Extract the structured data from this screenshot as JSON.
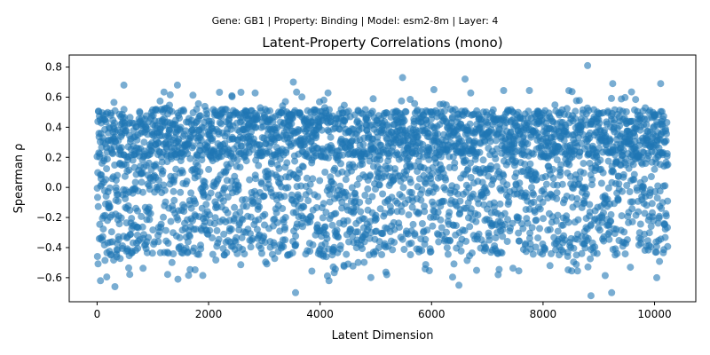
{
  "suptitle": "Gene: GB1 | Property: Binding | Model: esm2-8m | Layer: 4",
  "chart_data": {
    "type": "scatter",
    "title": "Latent-Property Correlations (mono)",
    "xlabel": "Latent Dimension",
    "ylabel": "Spearman ρ",
    "xlim": [
      -500,
      10740
    ],
    "ylim": [
      -0.76,
      0.88
    ],
    "xticks": [
      0,
      2000,
      4000,
      6000,
      8000,
      10000
    ],
    "yticks": [
      -0.6,
      -0.4,
      -0.2,
      0.0,
      0.2,
      0.4,
      0.6,
      0.8
    ],
    "xtick_labels": [
      "0",
      "2000",
      "4000",
      "6000",
      "8000",
      "10000"
    ],
    "ytick_labels": [
      "−0.6",
      "−0.4",
      "−0.2",
      "0.0",
      "0.2",
      "0.4",
      "0.6",
      "0.8"
    ],
    "grid": false,
    "legend": "none",
    "marker_color": "#1f77b4",
    "marker_alpha": 0.6,
    "n_points": 10240,
    "x_range": [
      0,
      10239
    ],
    "y_range": [
      -0.72,
      0.81
    ],
    "notable_points": [
      {
        "x": 8800,
        "y": 0.81
      },
      {
        "x": 5480,
        "y": 0.73
      },
      {
        "x": 6600,
        "y": 0.72
      },
      {
        "x": 9250,
        "y": 0.69
      },
      {
        "x": 10110,
        "y": 0.69
      },
      {
        "x": 480,
        "y": 0.68
      },
      {
        "x": 1440,
        "y": 0.68
      },
      {
        "x": 3520,
        "y": 0.7
      },
      {
        "x": 3560,
        "y": -0.7
      },
      {
        "x": 8860,
        "y": -0.72
      },
      {
        "x": 9230,
        "y": -0.7
      },
      {
        "x": 320,
        "y": -0.66
      },
      {
        "x": 6490,
        "y": -0.65
      },
      {
        "x": 60,
        "y": -0.62
      },
      {
        "x": 1450,
        "y": -0.61
      },
      {
        "x": 4160,
        "y": -0.62
      },
      {
        "x": 10040,
        "y": -0.6
      }
    ]
  }
}
